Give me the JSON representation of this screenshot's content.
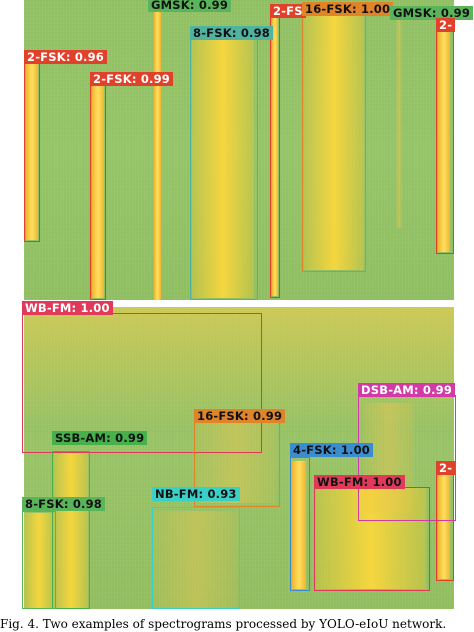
{
  "figure": {
    "caption": "Fig. 4.  Two examples of spectrograms processed by YOLO-eIoU network.",
    "top_panel": {
      "detections": [
        {
          "label": "GMSK: 0.99",
          "color": "#5ab55a"
        },
        {
          "label": "2-FS",
          "color": "#e0412a"
        },
        {
          "label": "16-FSK: 1.00",
          "color": "#e0842a"
        },
        {
          "label": "GMSK: 0.99",
          "color": "#5ab55a"
        },
        {
          "label": "2-",
          "color": "#e0412a"
        },
        {
          "label": "8-FSK: 0.98",
          "color": "#4fb3a0"
        },
        {
          "label": "2-FSK: 0.96",
          "color": "#e0412a"
        },
        {
          "label": "2-FSK: 0.99",
          "color": "#e0412a"
        }
      ]
    },
    "bottom_panel": {
      "detections": [
        {
          "label": "WB-FM: 1.00",
          "color": "#e03a5a"
        },
        {
          "label": "DSB-AM: 0.99",
          "color": "#d23aa8"
        },
        {
          "label": "16-FSK: 0.99",
          "color": "#e0842a"
        },
        {
          "label": "SSB-AM: 0.99",
          "color": "#46b04a"
        },
        {
          "label": "4-FSK: 1.00",
          "color": "#3a8ed0"
        },
        {
          "label": "WB-FM: 1.00",
          "color": "#e03a5a"
        },
        {
          "label": "2-",
          "color": "#e0412a"
        },
        {
          "label": "NB-FM: 0.93",
          "color": "#3ad0c8"
        },
        {
          "label": "8-FSK: 0.98",
          "color": "#5ab55a"
        }
      ]
    }
  }
}
